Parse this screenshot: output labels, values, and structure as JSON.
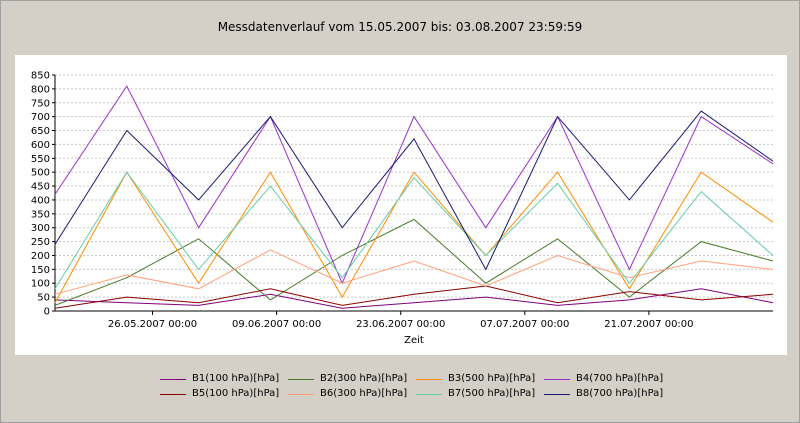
{
  "title": "Messdatenverlauf vom  15.05.2007  bis: 03.08.2007 23:59:59",
  "chart_data": {
    "type": "line",
    "title": "Messdatenverlauf vom  15.05.2007  bis: 03.08.2007 23:59:59",
    "xlabel": "Zeit",
    "ylabel": "",
    "ylim": [
      0,
      850
    ],
    "yticks": [
      0,
      50,
      100,
      150,
      200,
      250,
      300,
      350,
      400,
      450,
      500,
      550,
      600,
      650,
      700,
      750,
      800,
      850
    ],
    "xlim": [
      "2007-05-15",
      "2007-08-04"
    ],
    "xticks": [
      {
        "date": "2007-05-26",
        "label": "26.05.2007 00:00"
      },
      {
        "date": "2007-06-09",
        "label": "09.06.2007 00:00"
      },
      {
        "date": "2007-06-23",
        "label": "23.06.2007 00:00"
      },
      {
        "date": "2007-07-07",
        "label": "07.07.2007 00:00"
      },
      {
        "date": "2007-07-21",
        "label": "21.07.2007 00:00"
      }
    ],
    "grid": "horizontal",
    "legend_position": "bottom",
    "series": [
      {
        "name": "B1(100 hPa)[hPa]",
        "color": "#800080",
        "values": [
          40,
          30,
          20,
          60,
          10,
          30,
          50,
          20,
          40,
          80,
          30
        ]
      },
      {
        "name": "B2(300 hPa)[hPa]",
        "color": "#4a7a2a",
        "values": [
          20,
          120,
          260,
          40,
          200,
          330,
          100,
          260,
          50,
          250,
          180
        ]
      },
      {
        "name": "B3(500 hPa)[hPa]",
        "color": "#ff8c00",
        "values": [
          30,
          500,
          100,
          500,
          50,
          500,
          200,
          500,
          80,
          500,
          320
        ]
      },
      {
        "name": "B4(700 hPa)[hPa]",
        "color": "#9932cc",
        "values": [
          420,
          810,
          300,
          700,
          100,
          700,
          300,
          700,
          150,
          700,
          530
        ]
      },
      {
        "name": "B5(100 hPa)[hPa]",
        "color": "#8b0000",
        "values": [
          10,
          50,
          30,
          80,
          20,
          60,
          90,
          30,
          70,
          40,
          60
        ]
      },
      {
        "name": "B6(300 hPa)[hPa]",
        "color": "#ffa07a",
        "values": [
          60,
          130,
          80,
          220,
          100,
          180,
          90,
          200,
          120,
          180,
          150
        ]
      },
      {
        "name": "B7(500 hPa)[hPa]",
        "color": "#66cdaa",
        "values": [
          80,
          500,
          150,
          450,
          120,
          480,
          200,
          460,
          100,
          430,
          200
        ]
      },
      {
        "name": "B8(700 hPa)[hPa]",
        "color": "#191970",
        "values": [
          240,
          650,
          400,
          700,
          300,
          620,
          150,
          700,
          400,
          720,
          540
        ]
      }
    ]
  }
}
